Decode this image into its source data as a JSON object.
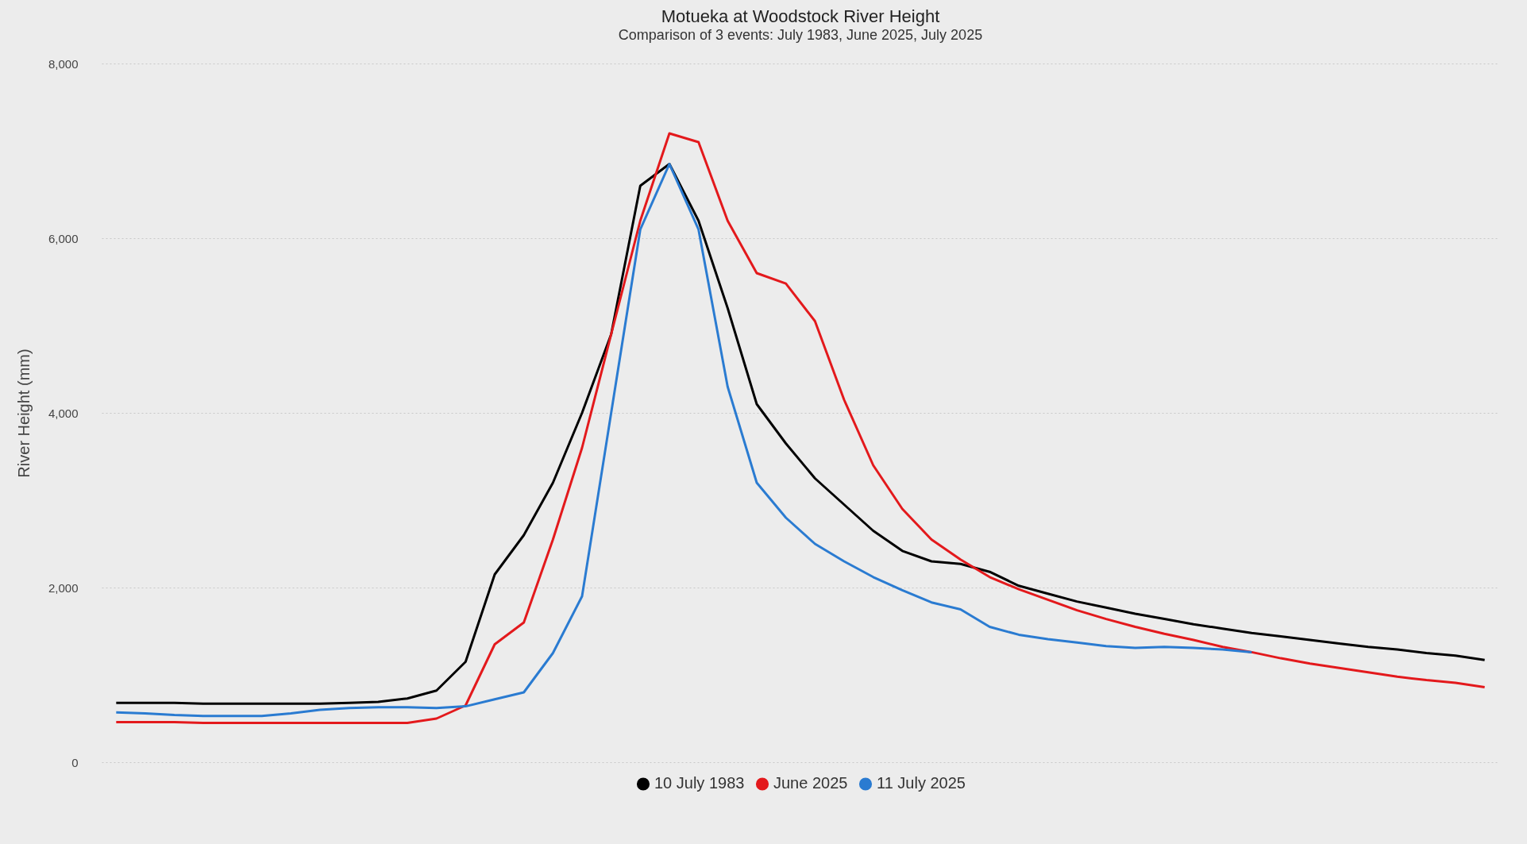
{
  "chart_data": {
    "type": "line",
    "title": "Motueka at Woodstock River Height",
    "subtitle": "Comparison of 3 events: July 1983, June 2025, July 2025",
    "ylabel": "River Height (mm)",
    "categories": [
      null,
      null,
      null,
      null,
      null,
      null,
      null,
      null,
      null,
      null,
      null,
      null,
      null,
      null,
      null,
      null,
      null,
      null,
      null,
      null,
      null,
      null,
      null,
      null,
      null,
      null,
      null,
      null,
      null,
      null,
      null,
      null,
      null,
      null,
      null,
      null,
      null,
      null,
      null,
      null,
      null,
      null,
      null,
      null,
      null,
      null,
      null,
      null
    ],
    "ylim": [
      0,
      8000
    ],
    "yticks": [
      0,
      {
        "value": 2000,
        "label": "2,000"
      },
      {
        "value": 4000,
        "label": "4,000"
      },
      {
        "value": 6000,
        "label": "6,000"
      },
      {
        "value": 8000,
        "label": "8,000"
      }
    ],
    "grid": "y",
    "legend": "bottom",
    "series": [
      {
        "name": "10 July 1983",
        "color": "#000000",
        "values": [
          680,
          680,
          680,
          670,
          670,
          670,
          670,
          670,
          680,
          690,
          730,
          820,
          1150,
          2150,
          2600,
          3200,
          4000,
          4900,
          6600,
          6850,
          6200,
          5200,
          4100,
          3650,
          3250,
          2950,
          2650,
          2420,
          2300,
          2270,
          2180,
          2020,
          1930,
          1840,
          1770,
          1700,
          1640,
          1580,
          1530,
          1480,
          1440,
          1400,
          1360,
          1320,
          1290,
          1250,
          1220,
          1170
        ]
      },
      {
        "name": "June 2025",
        "color": "#e3191c",
        "values": [
          460,
          460,
          460,
          450,
          450,
          450,
          450,
          450,
          450,
          450,
          450,
          500,
          650,
          1350,
          1600,
          2550,
          3600,
          4900,
          6200,
          7200,
          7100,
          6200,
          5600,
          5480,
          5050,
          4150,
          3400,
          2900,
          2550,
          2320,
          2120,
          1980,
          1860,
          1740,
          1640,
          1550,
          1470,
          1400,
          1320,
          1260,
          1190,
          1130,
          1080,
          1030,
          980,
          940,
          910,
          860
        ]
      },
      {
        "name": "11 July 2025",
        "color": "#2a7bd1",
        "values": [
          570,
          560,
          540,
          530,
          530,
          530,
          560,
          600,
          620,
          630,
          630,
          620,
          640,
          720,
          800,
          1250,
          1900,
          4000,
          6100,
          6850,
          6100,
          4300,
          3200,
          2800,
          2500,
          2300,
          2120,
          1970,
          1830,
          1750,
          1550,
          1460,
          1410,
          1370,
          1330,
          1310,
          1320,
          1310,
          1290,
          1260,
          null,
          null,
          null,
          null,
          null,
          null,
          null,
          null
        ]
      }
    ]
  }
}
